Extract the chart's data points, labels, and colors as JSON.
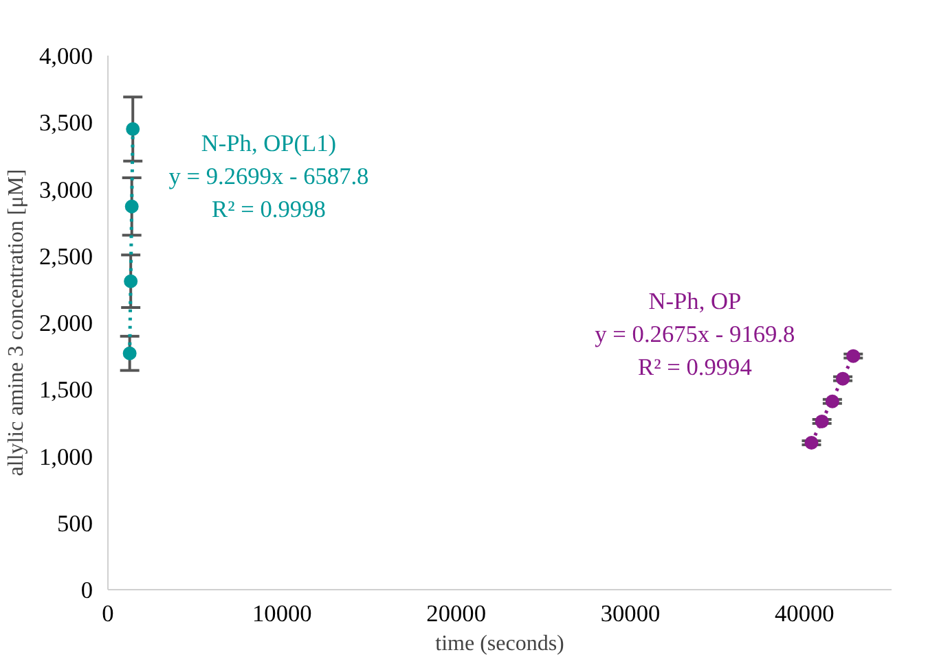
{
  "chart_data": {
    "type": "scatter",
    "xlabel": "time (seconds)",
    "ylabel": "allylic amine 3 concentration [μM]",
    "xlim": [
      0,
      45000
    ],
    "xticks": [
      0,
      10000,
      20000,
      30000,
      40000
    ],
    "ylim": [
      0,
      4000
    ],
    "yticks": [
      0,
      500,
      {
        "value": 1000,
        "label": "1,000"
      },
      {
        "value": 1500,
        "label": "1,500"
      },
      {
        "value": 2000,
        "label": "2,000"
      },
      {
        "value": 2500,
        "label": "2,500"
      },
      {
        "value": 3000,
        "label": "3,000"
      },
      {
        "value": 3500,
        "label": "3,500"
      },
      {
        "value": 4000,
        "label": "4,000"
      }
    ],
    "grid": false,
    "legend": false,
    "series": [
      {
        "name": "N-Ph, OP(L1)",
        "color": "#009999",
        "marker": "circle",
        "x": [
          1250,
          1310,
          1370,
          1430
        ],
        "values": [
          1770,
          2310,
          2870,
          3450
        ],
        "errors": [
          128,
          197,
          215,
          240
        ]
      },
      {
        "name": "N-Ph, OP",
        "color": "#8b1a8b",
        "marker": "circle",
        "x": [
          40400,
          41000,
          41600,
          42200,
          42800
        ],
        "values": [
          1100,
          1260,
          1410,
          1580,
          1750
        ],
        "errors": [
          15,
          15,
          15,
          15,
          15
        ]
      },
      {
        "type": "line",
        "line_style": "dotted",
        "color": "#009999",
        "x": [
          1250,
          1430
        ],
        "values": [
          1770,
          3450
        ]
      },
      {
        "type": "line",
        "line_style": "dotted",
        "color": "#8b1a8b",
        "x": [
          40400,
          42800
        ],
        "values": [
          1100,
          1750
        ]
      }
    ],
    "annotations": [
      "y = 9.2699x - 6587.8",
      "R² = 0.9998",
      "y = 0.2675x - 9169.8",
      "R² = 0.9994"
    ]
  }
}
